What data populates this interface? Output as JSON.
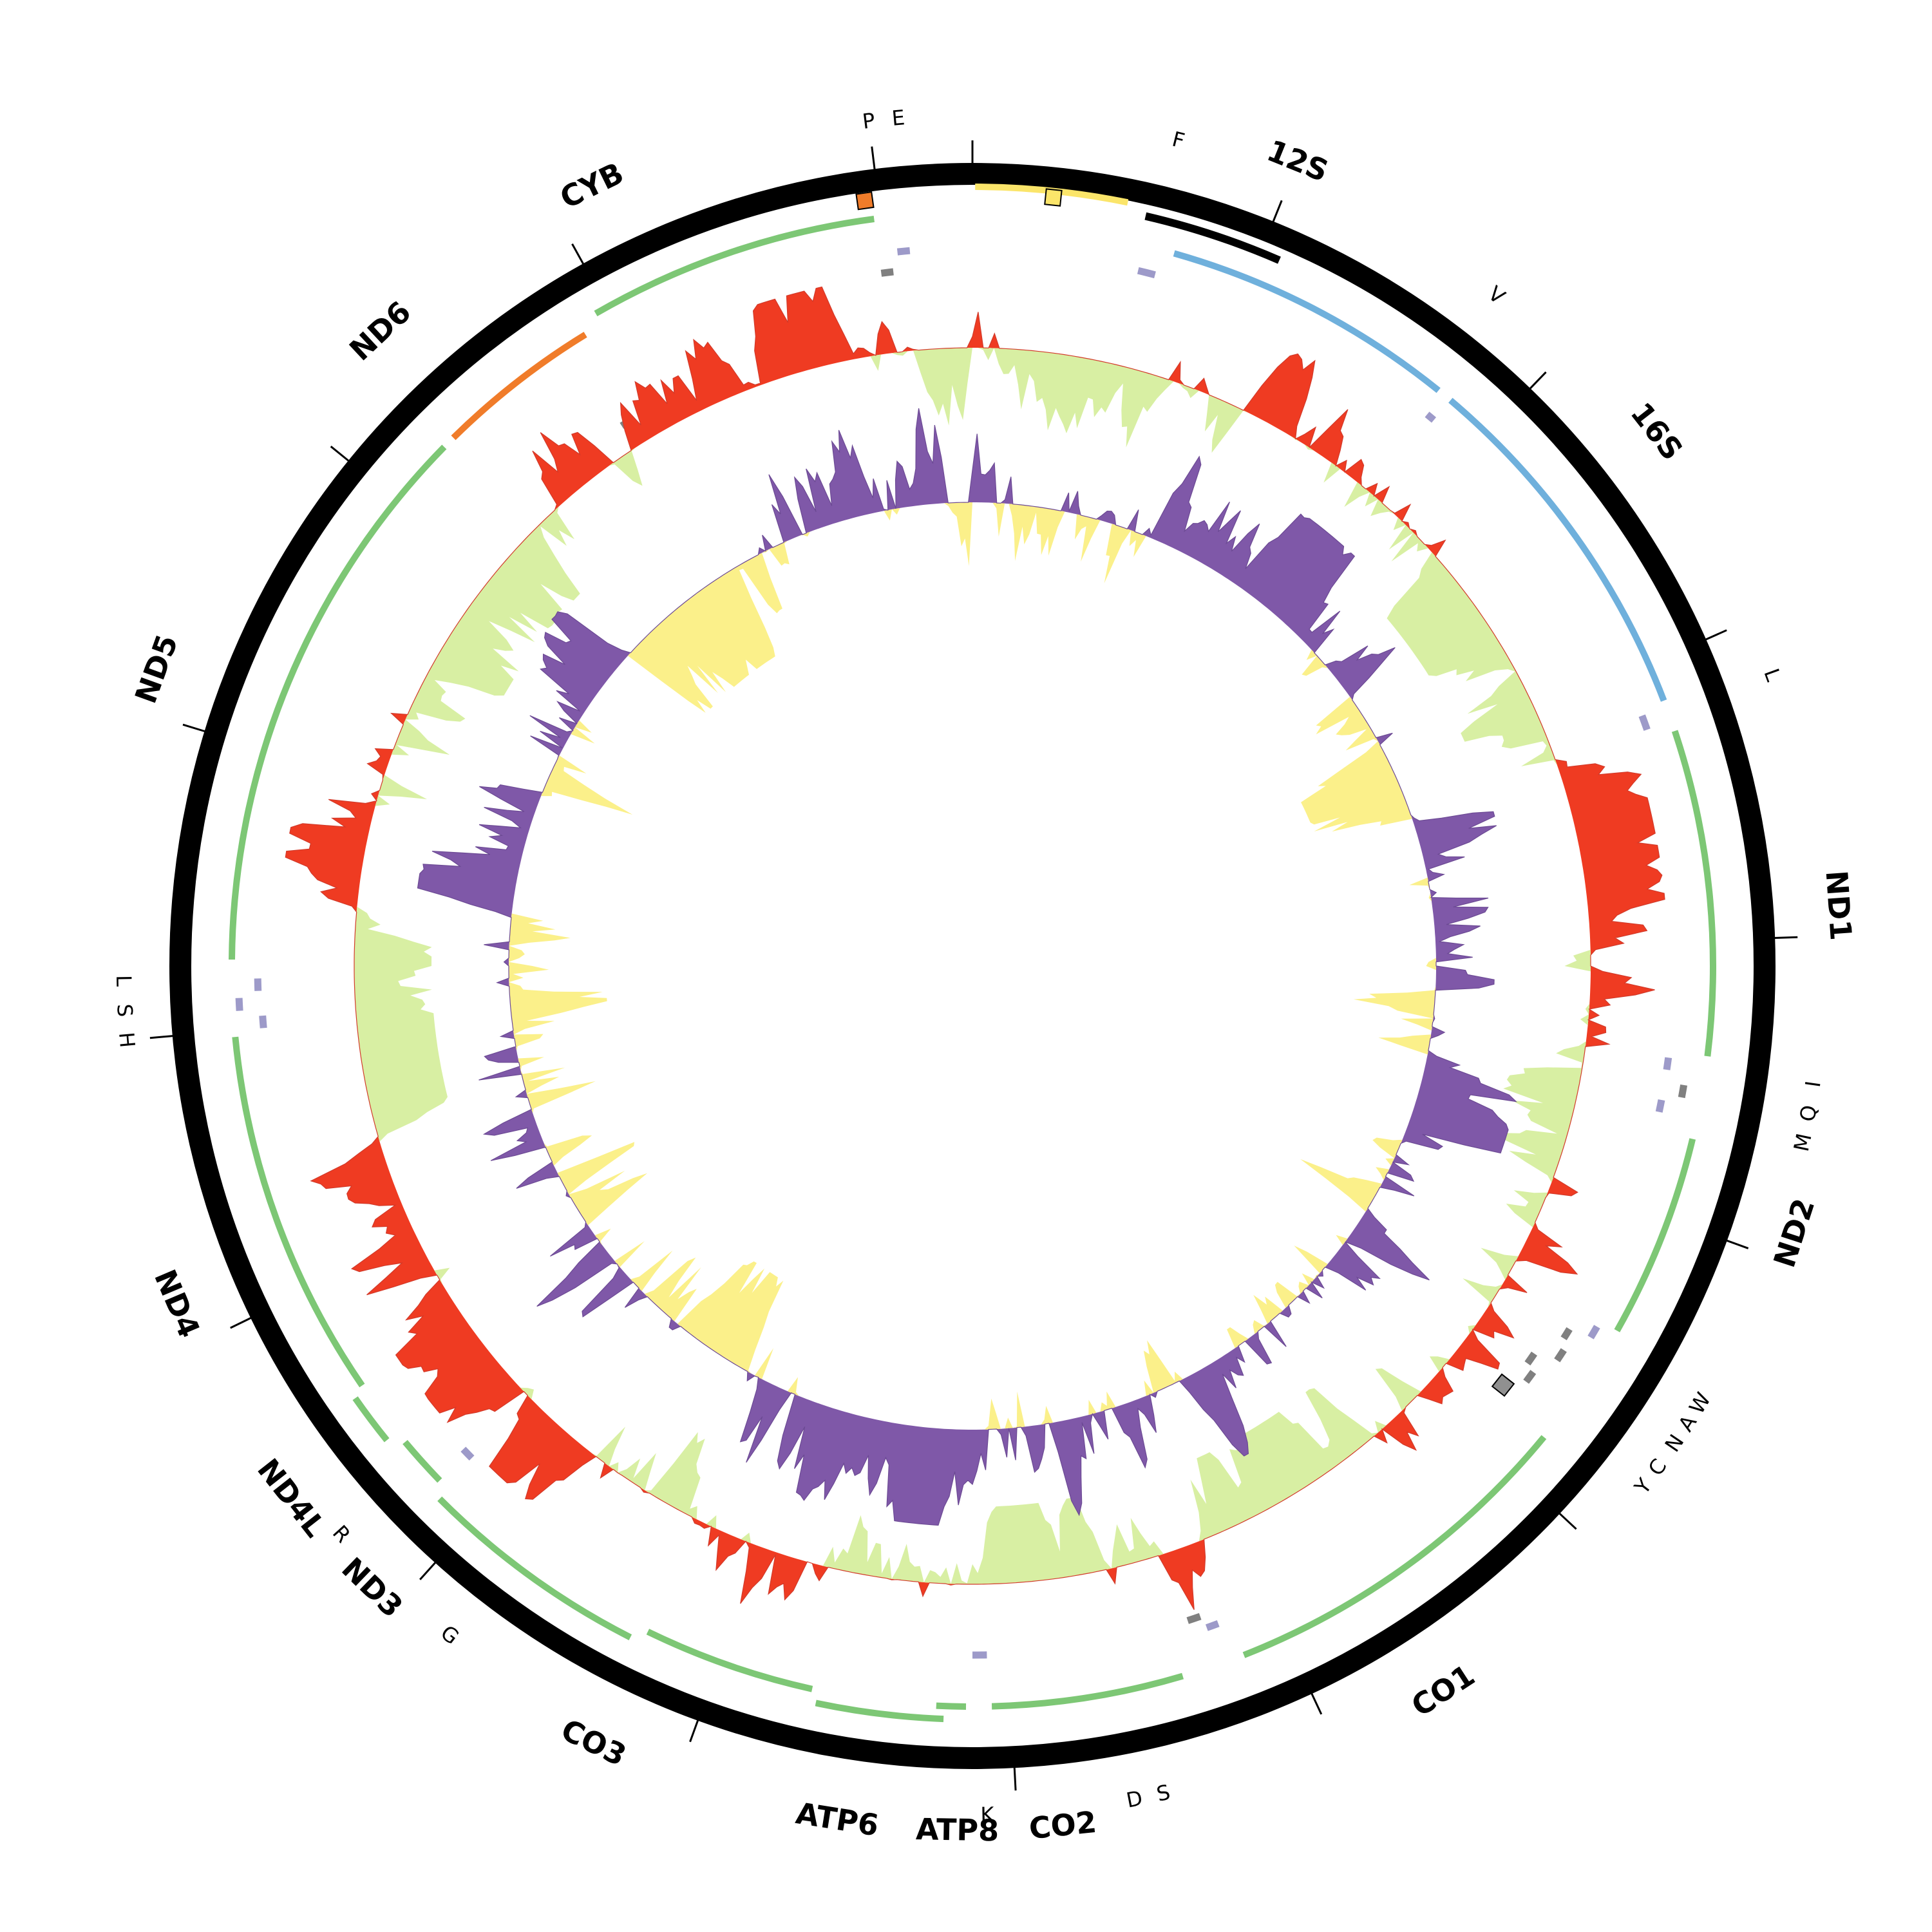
{
  "colors": {
    "outer_ring": "#000000",
    "protein_gene": "#7dc775",
    "rrna_gene": "#6fb0dc",
    "nd6_gene": "#f07c2a",
    "trna": "#9d9ac9",
    "trna_dark": "#808080",
    "control_region_yellow": "#fbe56a",
    "control_region_black": "#000000",
    "gc_skew_pos": "#ef3b22",
    "gc_skew_neg": "#d8efa3",
    "at_skew_pos": "#7f58a8",
    "at_skew_neg": "#fbf08a",
    "origin_orange": "#f07c2a",
    "origin_grey": "#909090"
  },
  "gene_labels": [
    {
      "text": "12S",
      "angle": 22,
      "size": "big"
    },
    {
      "text": "16S",
      "angle": 52,
      "size": "big"
    },
    {
      "text": "ND1",
      "angle": 86,
      "size": "big"
    },
    {
      "text": "ND2",
      "angle": 108,
      "size": "big"
    },
    {
      "text": "CO1",
      "angle": 147,
      "size": "big"
    },
    {
      "text": "CO2",
      "angle": 174,
      "size": "big"
    },
    {
      "text": "ATP8",
      "angle": 181,
      "size": "big"
    },
    {
      "text": "ATP6",
      "angle": 189,
      "size": "big"
    },
    {
      "text": "CO3",
      "angle": 206,
      "size": "big"
    },
    {
      "text": "ND3",
      "angle": 224,
      "size": "big"
    },
    {
      "text": "ND4L",
      "angle": 232,
      "size": "big"
    },
    {
      "text": "ND4",
      "angle": 247,
      "size": "big"
    },
    {
      "text": "ND5",
      "angle": 290,
      "size": "big"
    },
    {
      "text": "ND6",
      "angle": 317,
      "size": "big"
    },
    {
      "text": "CYB",
      "angle": 334,
      "size": "big"
    }
  ],
  "trna_labels": [
    {
      "text": "F",
      "angle": 14
    },
    {
      "text": "V",
      "angle": 38
    },
    {
      "text": "L",
      "angle": 70
    },
    {
      "text": "I",
      "angle": 98
    },
    {
      "text": "Q",
      "angle": 100
    },
    {
      "text": "M",
      "angle": 102
    },
    {
      "text": "W",
      "angle": 121
    },
    {
      "text": "A",
      "angle": 122.6
    },
    {
      "text": "N",
      "angle": 124.2
    },
    {
      "text": "C",
      "angle": 126.2
    },
    {
      "text": "Y",
      "angle": 127.8
    },
    {
      "text": "S",
      "angle": 167
    },
    {
      "text": "D",
      "angle": 169
    },
    {
      "text": "K",
      "angle": 179
    },
    {
      "text": "G",
      "angle": 218
    },
    {
      "text": "R",
      "angle": 228
    },
    {
      "text": "H",
      "angle": 265
    },
    {
      "text": "S",
      "angle": 267
    },
    {
      "text": "L",
      "angle": 269
    },
    {
      "text": "P",
      "angle": 353
    },
    {
      "text": "E",
      "angle": 355
    }
  ]
}
